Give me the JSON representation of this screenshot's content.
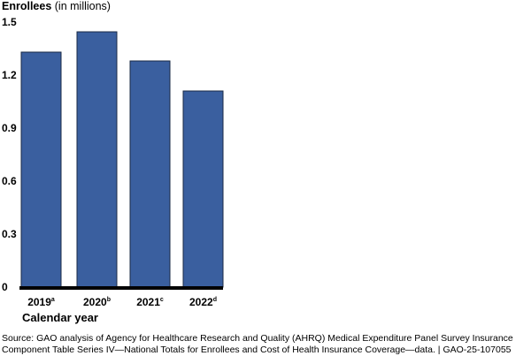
{
  "chart_data": {
    "type": "bar",
    "title_bold": "Enrollees",
    "title_rest": "(in millions)",
    "xlabel": "Calendar year",
    "categories": [
      "2019",
      "2020",
      "2021",
      "2022"
    ],
    "category_notes": [
      "a",
      "b",
      "c",
      "d"
    ],
    "values": [
      1.33,
      1.445,
      1.28,
      1.11
    ],
    "ylim": [
      0,
      1.5
    ],
    "yticks": [
      "0",
      "0.3",
      "0.6",
      "0.9",
      "1.2",
      "1.5"
    ],
    "grid": false,
    "bar_color": "#3a5f9f",
    "bar_edge_color": "#1a2a44"
  },
  "source": "Source: GAO analysis of Agency for Healthcare Research and Quality (AHRQ) Medical Expenditure Panel Survey Insurance Component Table Series IV—National Totals for Enrollees and Cost of Health Insurance Coverage—data.  |  GAO-25-107055"
}
